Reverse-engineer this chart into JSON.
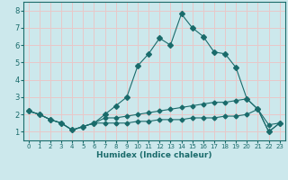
{
  "title": "",
  "xlabel": "Humidex (Indice chaleur)",
  "background_color": "#cce8ec",
  "grid_color": "#e8c8c8",
  "line_color": "#1a6b6b",
  "tick_color": "#1a6b6b",
  "xlim": [
    -0.5,
    23.5
  ],
  "ylim": [
    0.5,
    8.5
  ],
  "xticks": [
    0,
    1,
    2,
    3,
    4,
    5,
    6,
    7,
    8,
    9,
    10,
    11,
    12,
    13,
    14,
    15,
    16,
    17,
    18,
    19,
    20,
    21,
    22,
    23
  ],
  "yticks": [
    1,
    2,
    3,
    4,
    5,
    6,
    7,
    8
  ],
  "series": [
    {
      "x": [
        0,
        1,
        2,
        3,
        4,
        5,
        6,
        7,
        8,
        9,
        10,
        11,
        12,
        13,
        14,
        15,
        16,
        17,
        18,
        19,
        20,
        21,
        22,
        23
      ],
      "y": [
        2.2,
        2.0,
        1.7,
        1.5,
        1.1,
        1.3,
        1.5,
        2.0,
        2.5,
        3.0,
        4.8,
        5.5,
        6.4,
        6.0,
        7.8,
        7.0,
        6.5,
        5.6,
        5.5,
        4.7,
        2.9,
        2.3,
        1.0,
        1.5
      ]
    },
    {
      "x": [
        0,
        1,
        2,
        3,
        4,
        5,
        6,
        7,
        8,
        9,
        10,
        11,
        12,
        13,
        14,
        15,
        16,
        17,
        18,
        19,
        20,
        21,
        22,
        23
      ],
      "y": [
        2.2,
        2.0,
        1.7,
        1.5,
        1.1,
        1.3,
        1.5,
        1.8,
        1.8,
        1.9,
        2.0,
        2.1,
        2.2,
        2.3,
        2.4,
        2.5,
        2.6,
        2.7,
        2.7,
        2.8,
        2.9,
        2.3,
        1.4,
        1.5
      ]
    },
    {
      "x": [
        0,
        1,
        2,
        3,
        4,
        5,
        6,
        7,
        8,
        9,
        10,
        11,
        12,
        13,
        14,
        15,
        16,
        17,
        18,
        19,
        20,
        21,
        22,
        23
      ],
      "y": [
        2.2,
        2.0,
        1.7,
        1.5,
        1.1,
        1.3,
        1.5,
        1.5,
        1.5,
        1.5,
        1.6,
        1.6,
        1.7,
        1.7,
        1.7,
        1.8,
        1.8,
        1.8,
        1.9,
        1.9,
        2.0,
        2.3,
        1.0,
        1.5
      ]
    }
  ],
  "xlabel_fontsize": 6.5,
  "tick_fontsize_x": 5.0,
  "tick_fontsize_y": 6.0
}
